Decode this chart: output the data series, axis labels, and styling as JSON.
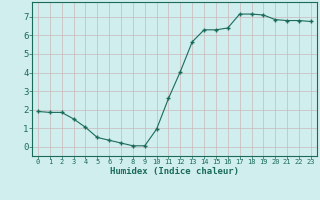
{
  "x": [
    0,
    1,
    2,
    3,
    4,
    5,
    6,
    7,
    8,
    9,
    10,
    11,
    12,
    13,
    14,
    15,
    16,
    17,
    18,
    19,
    20,
    21,
    22,
    23
  ],
  "y": [
    1.9,
    1.85,
    1.85,
    1.5,
    1.05,
    0.5,
    0.35,
    0.2,
    0.05,
    0.05,
    0.95,
    2.6,
    4.05,
    5.65,
    6.3,
    6.3,
    6.4,
    7.15,
    7.15,
    7.1,
    6.85,
    6.8,
    6.8,
    6.75
  ],
  "xlim": [
    -0.5,
    23.5
  ],
  "ylim": [
    -0.5,
    7.8
  ],
  "yticks": [
    0,
    1,
    2,
    3,
    4,
    5,
    6,
    7
  ],
  "xticks": [
    0,
    1,
    2,
    3,
    4,
    5,
    6,
    7,
    8,
    9,
    10,
    11,
    12,
    13,
    14,
    15,
    16,
    17,
    18,
    19,
    20,
    21,
    22,
    23
  ],
  "xlabel": "Humidex (Indice chaleur)",
  "line_color": "#1a6b5a",
  "marker_color": "#1a6b5a",
  "bg_color": "#d0eeee",
  "grid_color": "#c8b8b8",
  "tick_label_color": "#1a6b5a",
  "axis_label_color": "#1a6b5a",
  "xlabel_fontsize": 6.5,
  "ytick_fontsize": 6.5,
  "xtick_fontsize": 5.0
}
